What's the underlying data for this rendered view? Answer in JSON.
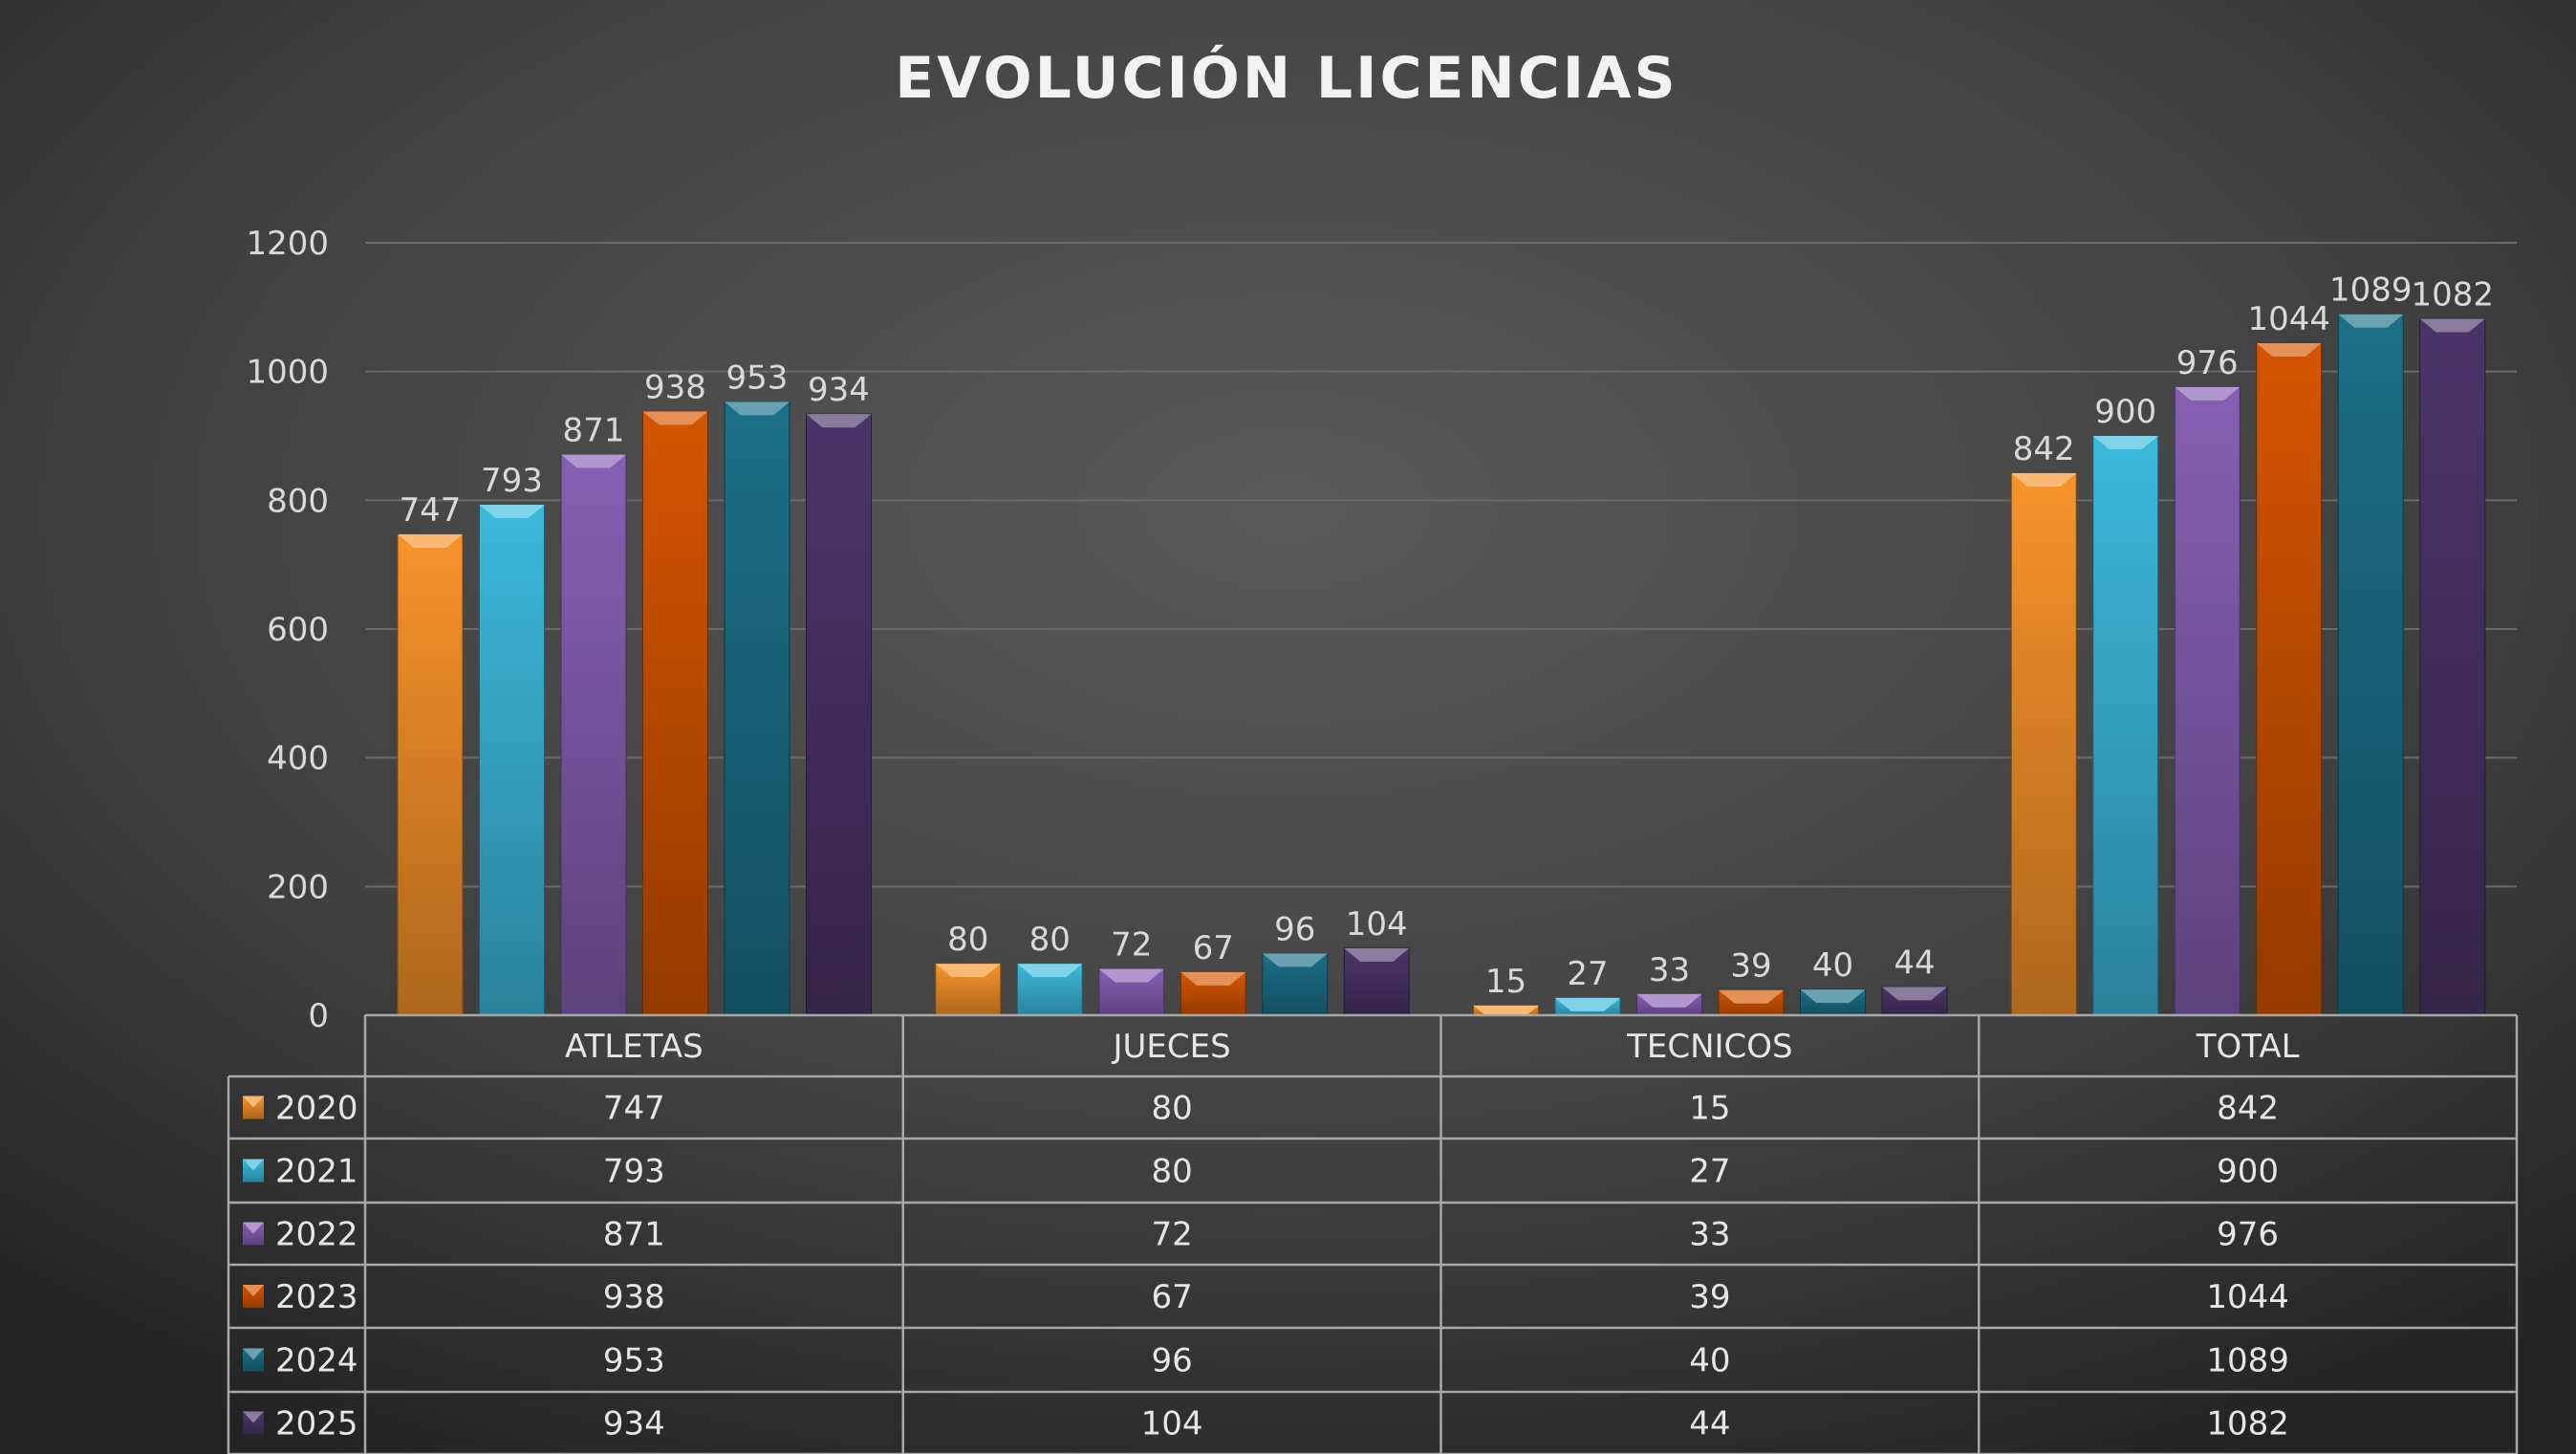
{
  "chart_data": {
    "type": "bar",
    "title": "EVOLUCIÓN LICENCIAS",
    "categories": [
      "ATLETAS",
      "JUECES",
      "TECNICOS",
      "TOTAL"
    ],
    "series": [
      {
        "name": "2020",
        "values": [
          747,
          80,
          15,
          842
        ],
        "color": "#f7932a"
      },
      {
        "name": "2021",
        "values": [
          793,
          80,
          27,
          900
        ],
        "color": "#3cb9dc"
      },
      {
        "name": "2022",
        "values": [
          871,
          72,
          33,
          976
        ],
        "color": "#8560b3"
      },
      {
        "name": "2023",
        "values": [
          938,
          67,
          39,
          1044
        ],
        "color": "#d45500"
      },
      {
        "name": "2024",
        "values": [
          953,
          96,
          40,
          1089
        ],
        "color": "#1b7088"
      },
      {
        "name": "2025",
        "values": [
          934,
          104,
          44,
          1082
        ],
        "color": "#4a3568"
      }
    ],
    "ylim": [
      0,
      1200
    ],
    "yticks": [
      0,
      200,
      400,
      600,
      800,
      1000,
      1200
    ],
    "grid": true,
    "data_labels": true,
    "legend": "data-table-below",
    "xlabel": "",
    "ylabel": ""
  }
}
